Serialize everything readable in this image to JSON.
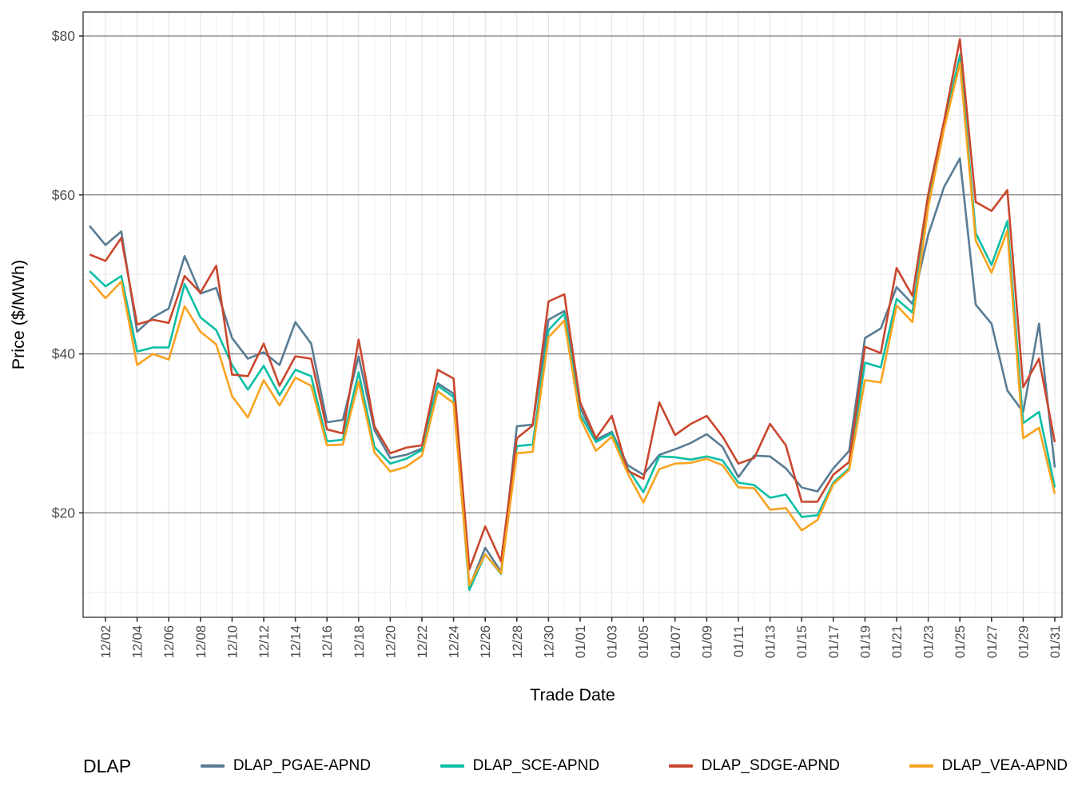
{
  "chart_data": {
    "type": "line",
    "title": "",
    "xlabel": "Trade Date",
    "ylabel": "Price ($/MWh)",
    "legend_title": "DLAP",
    "legend_position": "bottom",
    "grid": true,
    "ylim": [
      6.9,
      83.0
    ],
    "y_ticks": [
      {
        "value": 20,
        "label": "$20"
      },
      {
        "value": 40,
        "label": "$40"
      },
      {
        "value": 60,
        "label": "$60"
      },
      {
        "value": 80,
        "label": "$80"
      }
    ],
    "y_minor_ticks": [
      10,
      30,
      50,
      70
    ],
    "x_tick_labels": [
      "12/02",
      "12/04",
      "12/06",
      "12/08",
      "12/10",
      "12/12",
      "12/14",
      "12/16",
      "12/18",
      "12/20",
      "12/22",
      "12/24",
      "12/26",
      "12/28",
      "12/30",
      "01/01",
      "01/03",
      "01/05",
      "01/07",
      "01/09",
      "01/11",
      "01/13",
      "01/15",
      "01/17",
      "01/19",
      "01/21",
      "01/23",
      "01/25",
      "01/27",
      "01/29",
      "01/31"
    ],
    "x_dates": [
      "12/01",
      "12/02",
      "12/03",
      "12/04",
      "12/05",
      "12/06",
      "12/07",
      "12/08",
      "12/09",
      "12/10",
      "12/11",
      "12/12",
      "12/13",
      "12/14",
      "12/15",
      "12/16",
      "12/17",
      "12/18",
      "12/19",
      "12/20",
      "12/21",
      "12/22",
      "12/23",
      "12/24",
      "12/25",
      "12/26",
      "12/27",
      "12/28",
      "12/29",
      "12/30",
      "12/31",
      "01/01",
      "01/02",
      "01/03",
      "01/04",
      "01/05",
      "01/06",
      "01/07",
      "01/08",
      "01/09",
      "01/10",
      "01/11",
      "01/12",
      "01/13",
      "01/14",
      "01/15",
      "01/16",
      "01/17",
      "01/18",
      "01/19",
      "01/20",
      "01/21",
      "01/22",
      "01/23",
      "01/24",
      "01/25",
      "01/26",
      "01/27",
      "01/28",
      "01/29",
      "01/30",
      "01/31"
    ],
    "series": [
      {
        "name": "DLAP_PGAE-APND",
        "color": "#587C94",
        "values": [
          56.1,
          53.7,
          55.4,
          42.8,
          44.6,
          45.7,
          52.3,
          47.6,
          48.3,
          42.0,
          39.4,
          40.2,
          38.6,
          44.0,
          41.3,
          31.4,
          31.7,
          39.7,
          30.4,
          26.9,
          27.3,
          28.1,
          36.3,
          35.0,
          10.7,
          15.6,
          12.6,
          30.9,
          31.1,
          44.3,
          45.4,
          33.2,
          29.2,
          30.2,
          26.0,
          24.8,
          27.3,
          28.0,
          28.8,
          29.9,
          28.3,
          24.5,
          27.2,
          27.1,
          25.6,
          23.2,
          22.7,
          25.6,
          27.8,
          42.0,
          43.2,
          48.4,
          46.3,
          55.0,
          61.0,
          64.6,
          46.2,
          43.8,
          35.4,
          32.7,
          43.8,
          25.7
        ]
      },
      {
        "name": "DLAP_SCE-APND",
        "color": "#0BBFA5",
        "values": [
          50.4,
          48.5,
          49.8,
          40.3,
          40.8,
          40.8,
          48.8,
          44.6,
          43.0,
          38.6,
          35.5,
          38.5,
          34.8,
          38.0,
          37.2,
          29.0,
          29.2,
          37.7,
          28.3,
          26.2,
          26.8,
          27.9,
          36.0,
          34.6,
          10.3,
          14.8,
          12.3,
          28.4,
          28.6,
          43.0,
          45.1,
          32.4,
          28.9,
          30.0,
          25.6,
          22.6,
          27.1,
          27.0,
          26.7,
          27.1,
          26.6,
          23.8,
          23.5,
          21.9,
          22.3,
          19.5,
          19.7,
          23.8,
          25.6,
          38.9,
          38.3,
          46.9,
          45.2,
          59.0,
          68.6,
          77.6,
          55.2,
          51.2,
          56.7,
          31.3,
          32.7,
          23.2
        ]
      },
      {
        "name": "DLAP_SDGE-APND",
        "color": "#C9472E",
        "values": [
          52.5,
          51.7,
          54.6,
          43.7,
          44.3,
          43.9,
          49.8,
          47.7,
          51.1,
          37.4,
          37.2,
          41.3,
          36.0,
          39.7,
          39.4,
          30.5,
          30.0,
          41.8,
          30.9,
          27.5,
          28.2,
          28.5,
          38.0,
          36.9,
          12.9,
          18.3,
          13.9,
          29.4,
          31.0,
          46.6,
          47.5,
          33.9,
          29.4,
          32.2,
          25.3,
          24.3,
          33.9,
          29.8,
          31.2,
          32.2,
          29.6,
          26.2,
          26.9,
          31.2,
          28.5,
          21.4,
          21.4,
          24.8,
          26.4,
          40.9,
          40.1,
          50.8,
          47.3,
          60.1,
          69.3,
          79.6,
          59.1,
          58.0,
          60.6,
          35.8,
          39.4,
          28.9
        ]
      },
      {
        "name": "DLAP_VEA-APND",
        "color": "#F8A31F",
        "values": [
          49.3,
          47.0,
          49.1,
          38.6,
          40.0,
          39.3,
          46.0,
          42.8,
          41.2,
          34.7,
          32.0,
          36.7,
          33.5,
          37.0,
          36.0,
          28.5,
          28.6,
          36.5,
          27.6,
          25.2,
          25.8,
          27.2,
          35.3,
          33.8,
          10.9,
          14.8,
          12.4,
          27.5,
          27.7,
          42.1,
          44.2,
          31.9,
          27.8,
          29.6,
          25.0,
          21.3,
          25.5,
          26.2,
          26.3,
          26.8,
          26.0,
          23.2,
          23.1,
          20.4,
          20.6,
          17.8,
          19.1,
          23.6,
          25.4,
          36.7,
          36.4,
          46.1,
          44.0,
          58.5,
          68.3,
          76.6,
          54.3,
          50.2,
          55.5,
          29.4,
          30.7,
          22.4
        ]
      }
    ],
    "style": {
      "panel_border": "#3E3E3E",
      "grid_major_h": "#5F5F5F",
      "grid_minor_h": "#EBEBEB",
      "grid_major_v": "#E2E2E2",
      "grid_minor_v": "#F1F1F1",
      "tick_color": "#333333",
      "tick_label_color": "#4D4D4D",
      "line_width": 2.6
    }
  }
}
